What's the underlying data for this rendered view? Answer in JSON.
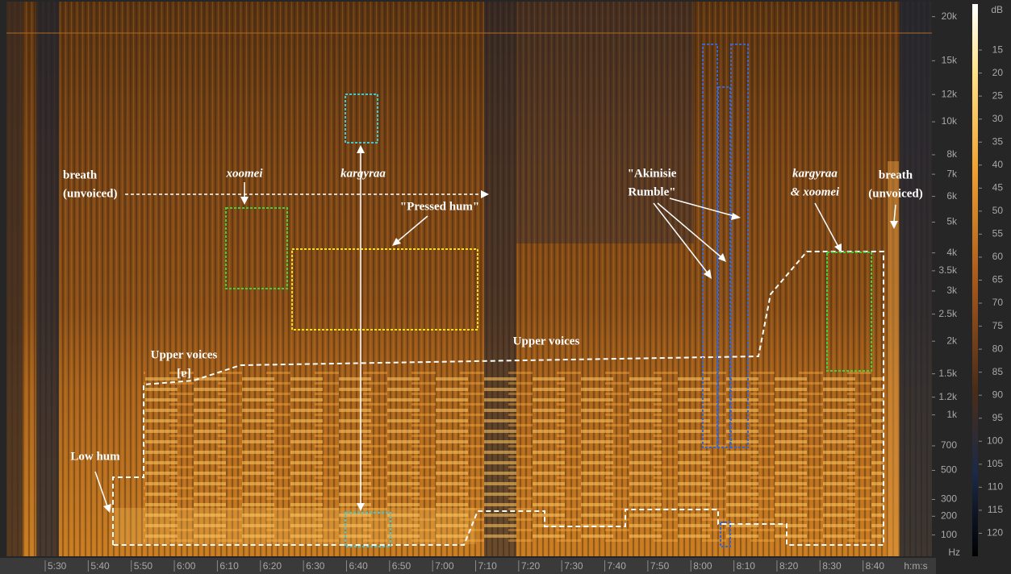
{
  "chart_data": {
    "type": "spectrogram",
    "xlabel": "h:m:s",
    "xlim": [
      321,
      536
    ],
    "xticks": [
      {
        "value": 330,
        "label": "5:30"
      },
      {
        "value": 340,
        "label": "5:40"
      },
      {
        "value": 350,
        "label": "5:50"
      },
      {
        "value": 360,
        "label": "6:00"
      },
      {
        "value": 370,
        "label": "6:10"
      },
      {
        "value": 380,
        "label": "6:20"
      },
      {
        "value": 390,
        "label": "6:30"
      },
      {
        "value": 400,
        "label": "6:40"
      },
      {
        "value": 410,
        "label": "6:50"
      },
      {
        "value": 420,
        "label": "7:00"
      },
      {
        "value": 430,
        "label": "7:10"
      },
      {
        "value": 440,
        "label": "7:20"
      },
      {
        "value": 450,
        "label": "7:30"
      },
      {
        "value": 460,
        "label": "7:40"
      },
      {
        "value": 470,
        "label": "7:50"
      },
      {
        "value": 480,
        "label": "8:00"
      },
      {
        "value": 490,
        "label": "8:10"
      },
      {
        "value": 500,
        "label": "8:20"
      },
      {
        "value": 510,
        "label": "8:30"
      },
      {
        "value": 520,
        "label": "8:40"
      }
    ],
    "ylabel": "Hz",
    "yscale": "mel",
    "ylim": [
      0,
      22050
    ],
    "yticks": [
      {
        "value": 20000,
        "label": "20k"
      },
      {
        "value": 15000,
        "label": "15k"
      },
      {
        "value": 12000,
        "label": "12k"
      },
      {
        "value": 10000,
        "label": "10k"
      },
      {
        "value": 8000,
        "label": "8k"
      },
      {
        "value": 7000,
        "label": "7k"
      },
      {
        "value": 6000,
        "label": "6k"
      },
      {
        "value": 5000,
        "label": "5k"
      },
      {
        "value": 4000,
        "label": "4k"
      },
      {
        "value": 3500,
        "label": "3.5k"
      },
      {
        "value": 3000,
        "label": "3k"
      },
      {
        "value": 2500,
        "label": "2.5k"
      },
      {
        "value": 2000,
        "label": "2k"
      },
      {
        "value": 1500,
        "label": "1.5k"
      },
      {
        "value": 1200,
        "label": "1.2k"
      },
      {
        "value": 1000,
        "label": "1k"
      },
      700,
      500,
      300,
      200,
      100
    ],
    "colorbar": {
      "label": "dB",
      "lim": [
        5,
        125
      ],
      "ticks": [
        15,
        20,
        25,
        30,
        35,
        40,
        45,
        50,
        55,
        60,
        65,
        70,
        75,
        80,
        85,
        90,
        95,
        100,
        105,
        110,
        115,
        120
      ]
    },
    "annotations": [
      {
        "lines": [
          "breath",
          "(unvoiced)"
        ]
      },
      {
        "lines": [
          "xoomei"
        ]
      },
      {
        "lines": [
          "kargyraa"
        ]
      },
      {
        "lines": [
          "\"Pressed hum\""
        ]
      },
      {
        "lines": [
          "\"Akinisie",
          "Rumble\""
        ]
      },
      {
        "lines": [
          "kargyraa",
          "& xoomei"
        ]
      },
      {
        "lines": [
          "breath",
          "(unvoiced)"
        ]
      },
      {
        "lines": [
          "Upper voices",
          "[ɐ]"
        ]
      },
      {
        "lines": [
          "Upper voices"
        ]
      },
      {
        "lines": [
          "Low hum"
        ]
      }
    ]
  }
}
